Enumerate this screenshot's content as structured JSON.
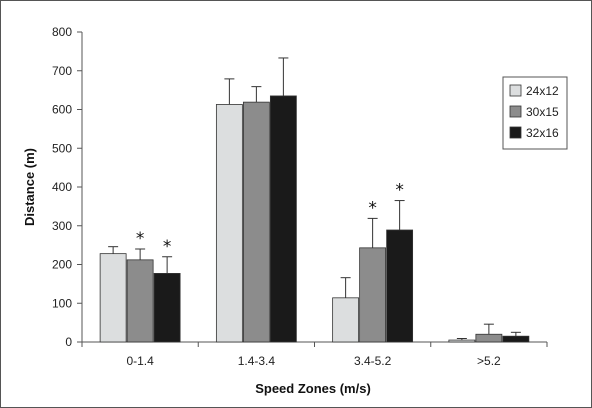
{
  "chart_data": {
    "type": "bar",
    "title": "",
    "xlabel": "Speed Zones (m/s)",
    "ylabel": "Distance (m)",
    "ylim": [
      0,
      800
    ],
    "yticks": [
      0,
      100,
      200,
      300,
      400,
      500,
      600,
      700,
      800
    ],
    "grid": false,
    "legend_position": "right",
    "categories": [
      "0-1.4",
      "1.4-3.4",
      "3.4-5.2",
      ">5.2"
    ],
    "series": [
      {
        "name": "24x12",
        "color": "#dcdedf",
        "values": [
          228,
          613,
          114,
          5
        ],
        "errors": [
          18,
          66,
          52,
          4
        ]
      },
      {
        "name": "30x15",
        "color": "#8c8c8c",
        "values": [
          212,
          619,
          243,
          20
        ],
        "errors": [
          28,
          40,
          76,
          26
        ]
      },
      {
        "name": "32x16",
        "color": "#1a1a1a",
        "values": [
          177,
          635,
          289,
          15
        ],
        "errors": [
          43,
          98,
          76,
          10
        ]
      }
    ],
    "annotations": [
      {
        "text": "*",
        "category": 0,
        "series": 1
      },
      {
        "text": "*",
        "category": 0,
        "series": 2
      },
      {
        "text": "*",
        "category": 2,
        "series": 1
      },
      {
        "text": "*",
        "category": 2,
        "series": 2
      }
    ]
  }
}
